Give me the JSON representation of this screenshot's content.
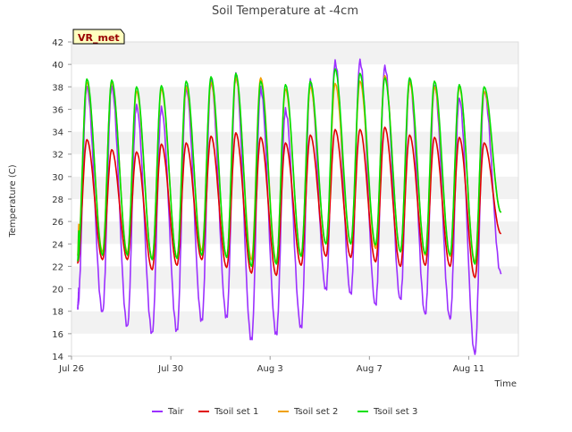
{
  "chart_data": {
    "type": "line",
    "title": "Soil Temperature at -4cm",
    "xlabel": "Time",
    "ylabel": "Temperature (C)",
    "badge": "VR_met",
    "xlim": [
      0,
      18
    ],
    "ylim": [
      14,
      42
    ],
    "yticks": [
      14,
      16,
      18,
      20,
      22,
      24,
      26,
      28,
      30,
      32,
      34,
      36,
      38,
      40,
      42
    ],
    "xticks": [
      {
        "day": 0,
        "label": "Jul 26"
      },
      {
        "day": 4,
        "label": "Jul 30"
      },
      {
        "day": 8,
        "label": "Aug 3"
      },
      {
        "day": 12,
        "label": "Aug 7"
      },
      {
        "day": 16,
        "label": "Aug 11"
      }
    ],
    "grid": "horizontal bands",
    "legend_position": "bottom",
    "series": [
      {
        "name": "Tair",
        "color": "#9b30ff",
        "start": 20.0,
        "start_day": 0.3,
        "end": 21.3,
        "end_day": 17.3,
        "min": [
          18.3,
          17.9,
          16.6,
          16.0,
          16.2,
          17.1,
          17.4,
          15.4,
          15.9,
          16.5,
          19.9,
          19.5,
          18.5,
          19.0,
          17.7,
          17.3,
          14.2
        ],
        "max": [
          38.0,
          38.0,
          36.3,
          36.1,
          37.9,
          38.5,
          39.0,
          37.8,
          35.9,
          38.5,
          40.2,
          40.3,
          39.8,
          38.6,
          38.1,
          37.0,
          37.6
        ]
      },
      {
        "name": "Tsoil set 1",
        "color": "#e00000",
        "start": 24.0,
        "start_day": 0.3,
        "end": 24.9,
        "end_day": 17.3,
        "min": [
          22.3,
          22.6,
          22.6,
          21.7,
          22.1,
          22.6,
          21.9,
          21.4,
          21.2,
          22.1,
          22.9,
          22.8,
          22.4,
          22.0,
          22.1,
          22.0,
          21.0
        ],
        "max": [
          33.3,
          32.4,
          32.2,
          32.9,
          33.0,
          33.6,
          33.9,
          33.5,
          33.0,
          33.7,
          34.2,
          34.2,
          34.4,
          33.7,
          33.5,
          33.5,
          33.0
        ]
      },
      {
        "name": "Tsoil set 2",
        "color": "#f0a000",
        "start": 25.8,
        "start_day": 0.3,
        "end": 26.8,
        "end_day": 17.3,
        "min": [
          23.0,
          23.3,
          23.2,
          22.7,
          22.8,
          23.4,
          22.8,
          22.6,
          22.4,
          23.0,
          24.0,
          24.0,
          23.6,
          23.3,
          23.0,
          22.9,
          22.4
        ],
        "max": [
          38.4,
          38.4,
          37.6,
          37.8,
          38.0,
          38.4,
          38.8,
          38.8,
          37.8,
          38.0,
          38.3,
          38.5,
          39.0,
          38.4,
          38.0,
          38.0,
          37.6
        ]
      },
      {
        "name": "Tsoil set 3",
        "color": "#00e000",
        "start": 25.2,
        "start_day": 0.3,
        "end": 26.8,
        "end_day": 17.3,
        "min": [
          22.5,
          23.0,
          23.0,
          22.6,
          22.7,
          23.0,
          22.8,
          22.0,
          22.2,
          22.9,
          24.0,
          24.0,
          23.9,
          23.3,
          23.1,
          23.0,
          22.2
        ],
        "max": [
          38.7,
          38.6,
          38.0,
          38.1,
          38.5,
          38.9,
          39.2,
          38.5,
          38.2,
          38.5,
          39.6,
          39.2,
          38.8,
          38.8,
          38.5,
          38.2,
          38.0
        ]
      }
    ]
  }
}
